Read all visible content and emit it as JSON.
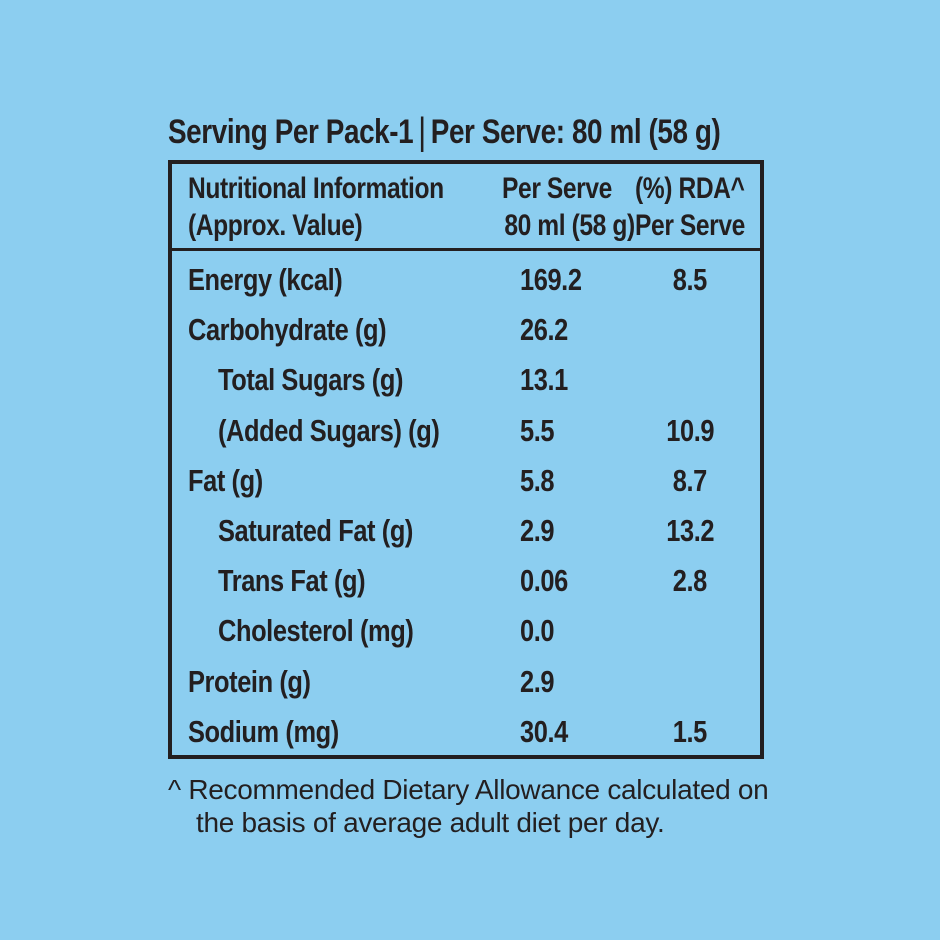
{
  "page": {
    "background_color": "#8CCEF0",
    "text_color": "#231F20"
  },
  "title": {
    "left": "Serving Per Pack-1",
    "separator": "|",
    "right": "Per Serve: 80 ml (58 g)"
  },
  "table": {
    "header": {
      "col1_line1": "Nutritional Information",
      "col1_line2": "(Approx. Value)",
      "col2_line1": "Per Serve",
      "col2_line2": "80 ml (58 g)",
      "col3_line1": "(%) RDA^",
      "col3_line2": "Per Serve"
    },
    "rows": [
      {
        "label": "Energy (kcal)",
        "per_serve": "169.2",
        "rda_percent": "8.5"
      },
      {
        "label": "Carbohydrate (g)",
        "per_serve": "26.2",
        "rda_percent": ""
      },
      {
        "label": "Total Sugars (g)",
        "per_serve": "13.1",
        "rda_percent": ""
      },
      {
        "label": "(Added Sugars) (g)",
        "per_serve": "5.5",
        "rda_percent": "10.9"
      },
      {
        "label": "Fat (g)",
        "per_serve": "5.8",
        "rda_percent": "8.7"
      },
      {
        "label": "Saturated Fat (g)",
        "per_serve": "2.9",
        "rda_percent": "13.2"
      },
      {
        "label": "Trans Fat (g)",
        "per_serve": "0.06",
        "rda_percent": "2.8"
      },
      {
        "label": "Cholesterol (mg)",
        "per_serve": "0.0",
        "rda_percent": ""
      },
      {
        "label": "Protein (g)",
        "per_serve": "2.9",
        "rda_percent": ""
      },
      {
        "label": "Sodium (mg)",
        "per_serve": "30.4",
        "rda_percent": "1.5"
      }
    ]
  },
  "footnote": {
    "marker": "^",
    "line1": "Recommended Dietary Allowance calculated on",
    "line2": "the basis of average adult diet per day."
  }
}
